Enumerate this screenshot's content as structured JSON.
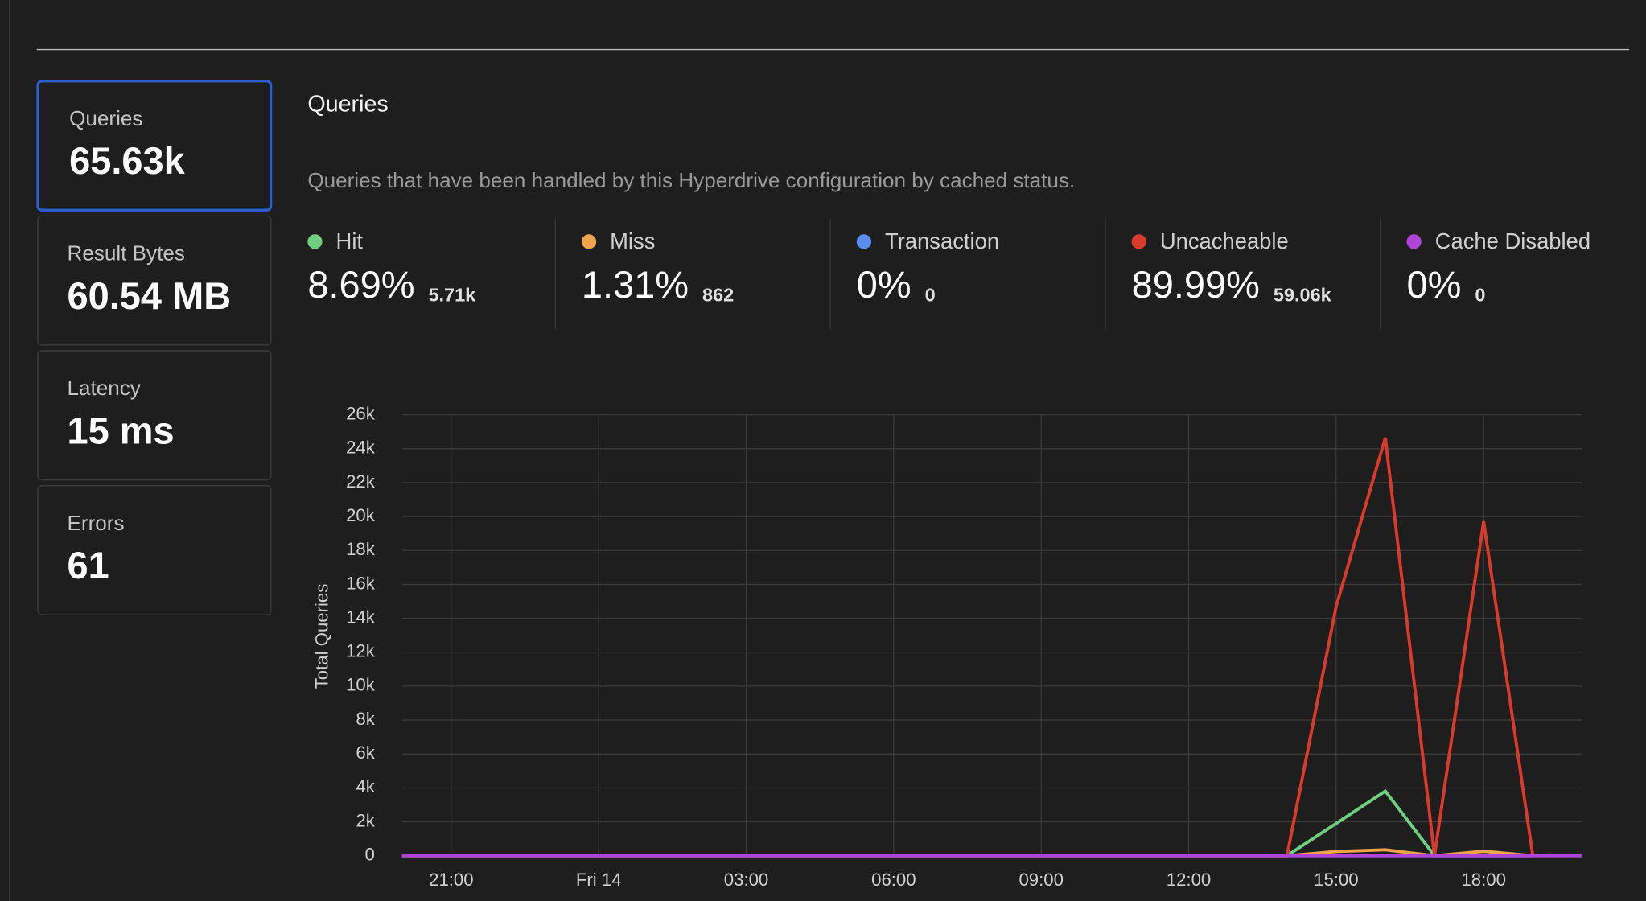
{
  "sidebar": [
    {
      "label": "Queries",
      "value": "65.63k"
    },
    {
      "label": "Result Bytes",
      "value": "60.54 MB"
    },
    {
      "label": "Latency",
      "value": "15 ms"
    },
    {
      "label": "Errors",
      "value": "61"
    }
  ],
  "panel": {
    "title": "Queries",
    "description": "Queries that have been handled by this Hyperdrive configuration by cached status."
  },
  "chart_data": {
    "type": "line",
    "y_label": "Total Queries",
    "categories": [
      null,
      "21:00",
      null,
      null,
      "Fri 14",
      null,
      null,
      "03:00",
      null,
      null,
      "06:00",
      null,
      null,
      "09:00",
      null,
      null,
      "12:00",
      null,
      null,
      "15:00",
      null,
      null,
      "18:00",
      null,
      null
    ],
    "ylim": [
      0,
      26000
    ],
    "yticks": [
      0,
      {
        "value": 2000,
        "label": "2k"
      },
      {
        "value": 4000,
        "label": "4k"
      },
      {
        "value": 6000,
        "label": "6k"
      },
      {
        "value": 8000,
        "label": "8k"
      },
      {
        "value": 10000,
        "label": "10k"
      },
      {
        "value": 12000,
        "label": "12k"
      },
      {
        "value": 14000,
        "label": "14k"
      },
      {
        "value": 16000,
        "label": "16k"
      },
      {
        "value": 18000,
        "label": "18k"
      },
      {
        "value": 20000,
        "label": "20k"
      },
      {
        "value": 22000,
        "label": "22k"
      },
      {
        "value": 24000,
        "label": "24k"
      },
      {
        "value": 26000,
        "label": "26k"
      }
    ],
    "grid": true,
    "series": [
      {
        "name": "Hit",
        "color": "#6fcf7f",
        "percent": "8.69%",
        "count": "5.71k",
        "values": [
          0,
          0,
          0,
          0,
          0,
          0,
          0,
          0,
          0,
          0,
          0,
          0,
          0,
          0,
          0,
          0,
          0,
          0,
          0,
          1900,
          3810,
          0,
          0,
          0,
          null
        ]
      },
      {
        "name": "Miss",
        "color": "#f0a54a",
        "percent": "1.31%",
        "count": "862",
        "values": [
          0,
          0,
          0,
          0,
          0,
          0,
          0,
          0,
          0,
          0,
          0,
          0,
          0,
          0,
          0,
          0,
          0,
          0,
          0,
          250,
          350,
          0,
          262,
          0,
          null
        ]
      },
      {
        "name": "Transaction",
        "color": "#5b8def",
        "percent": "0%",
        "count": "0",
        "values": [
          0,
          0,
          0,
          0,
          0,
          0,
          0,
          0,
          0,
          0,
          0,
          0,
          0,
          0,
          0,
          0,
          0,
          0,
          0,
          0,
          0,
          0,
          0,
          0,
          null
        ]
      },
      {
        "name": "Uncacheable",
        "color": "#d93a2b",
        "percent": "89.99%",
        "count": "59.06k",
        "values": [
          0,
          0,
          0,
          0,
          0,
          0,
          0,
          0,
          0,
          0,
          0,
          0,
          0,
          0,
          0,
          0,
          0,
          0,
          0,
          14700,
          24650,
          0,
          19710,
          0,
          null
        ]
      },
      {
        "name": "Cache Disabled",
        "color": "#b044d8",
        "percent": "0%",
        "count": "0",
        "values": [
          0,
          0,
          0,
          0,
          0,
          0,
          0,
          0,
          0,
          0,
          0,
          0,
          0,
          0,
          0,
          0,
          0,
          0,
          0,
          0,
          0,
          0,
          0,
          0,
          0
        ]
      }
    ]
  }
}
